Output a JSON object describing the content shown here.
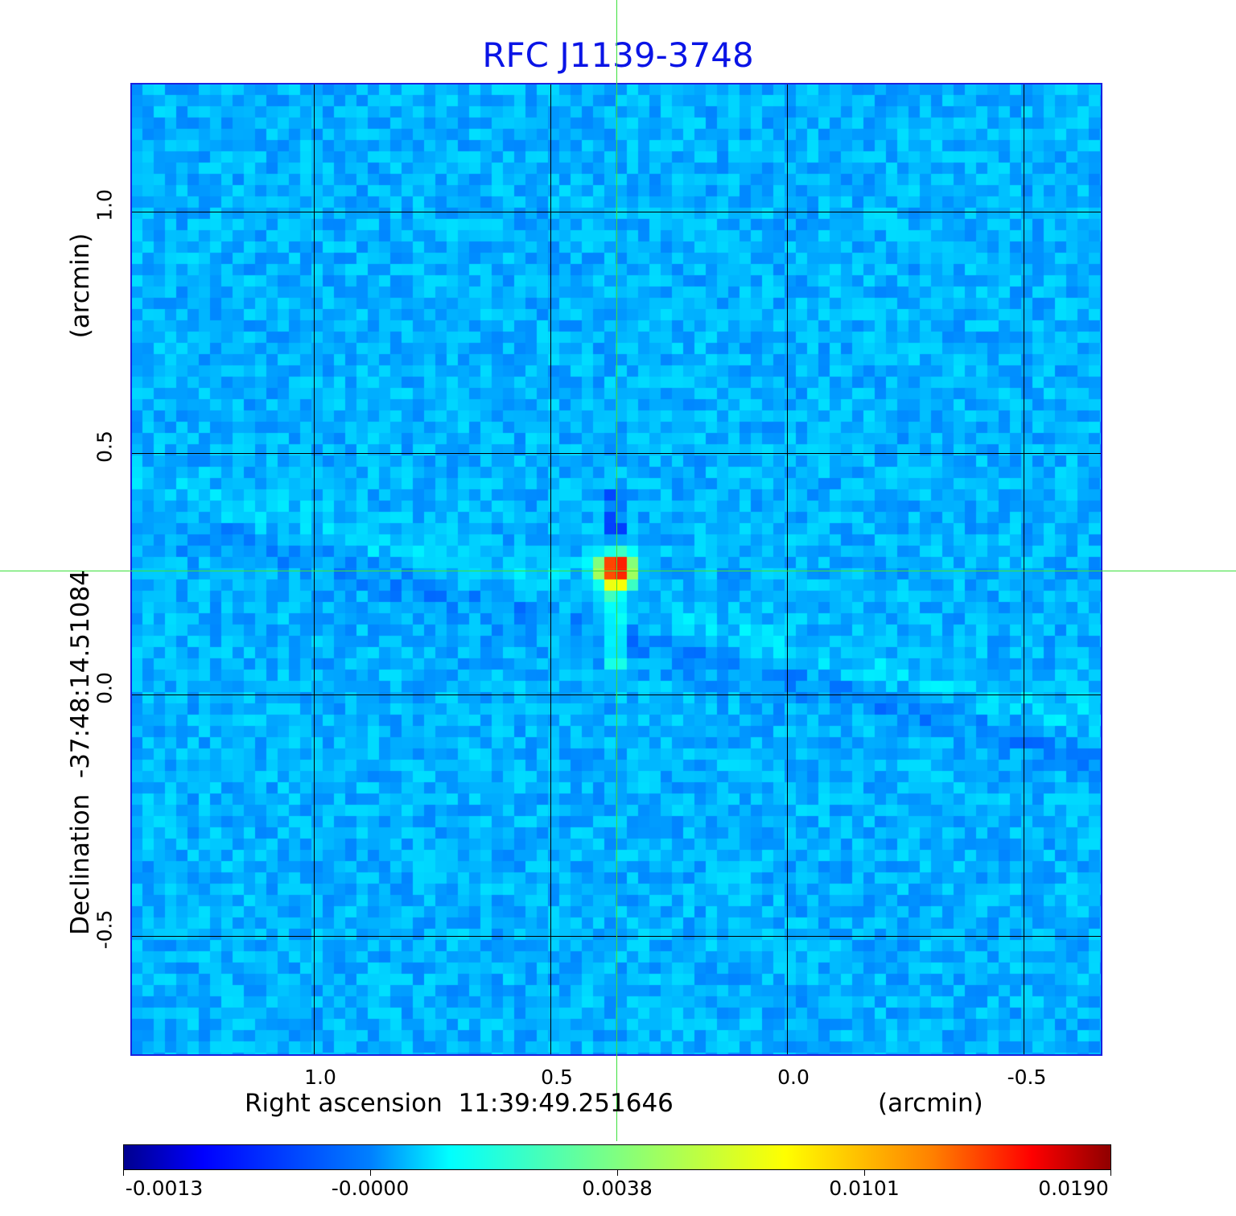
{
  "chart_data": {
    "type": "heatmap",
    "title": "RFC J1139-3748",
    "xlabel": "Right ascension  11:39:49.251646",
    "xunit": "(arcmin)",
    "ylabel": "Declination  -37:48:14.51084",
    "yunit": "(arcmin)",
    "xlim": [
      1.386,
      -0.665
    ],
    "ylim": [
      -0.747,
      1.265
    ],
    "xticks": [
      "1.0",
      "0.5",
      "0.0",
      "-0.5"
    ],
    "xtick_values": [
      1.0,
      0.5,
      0.0,
      -0.5
    ],
    "yticks": [
      "1.0",
      "0.5",
      "0.0",
      "-0.5"
    ],
    "ytick_values": [
      1.0,
      0.5,
      0.0,
      -0.5
    ],
    "grid": true,
    "crosshair": {
      "ra": 0.359,
      "dec": 0.257
    },
    "peak": {
      "ra": 0.36,
      "dec": 0.26,
      "value": 0.019
    },
    "colormap": "jet",
    "colorbar": {
      "ticks": [
        "-0.0013",
        "-0.0000",
        "0.0038",
        "0.0101",
        "0.0190"
      ],
      "location": "bottom"
    },
    "colors": {
      "title": "#0a14e6",
      "frame": "#1a22e0",
      "crosshair": "#3ce03c"
    }
  }
}
